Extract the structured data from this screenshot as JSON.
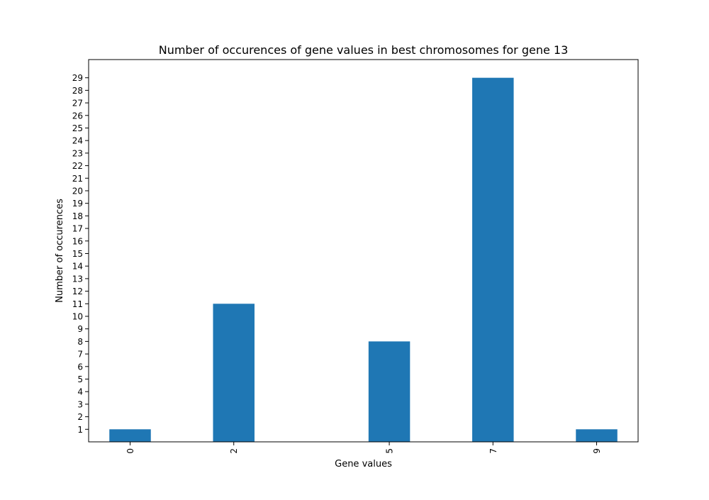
{
  "chart_data": {
    "type": "bar",
    "title": "Number of occurences of gene values in best chromosomes for gene 13",
    "xlabel": "Gene values",
    "ylabel": "Number of occurences",
    "x": [
      0,
      2,
      5,
      7,
      9
    ],
    "values": [
      1,
      11,
      8,
      29,
      1
    ],
    "x_tick_labels": [
      "0",
      "2",
      "5",
      "7",
      "9"
    ],
    "y_ticks": [
      1,
      2,
      3,
      4,
      5,
      6,
      7,
      8,
      9,
      10,
      11,
      12,
      13,
      14,
      15,
      16,
      17,
      18,
      19,
      20,
      21,
      22,
      23,
      24,
      25,
      26,
      27,
      28,
      29
    ],
    "xlim": [
      -0.8,
      9.8
    ],
    "ylim": [
      0,
      30.45
    ],
    "bar_width": 0.8,
    "bar_color": "#1f77b4",
    "grid": false,
    "legend": "none"
  }
}
